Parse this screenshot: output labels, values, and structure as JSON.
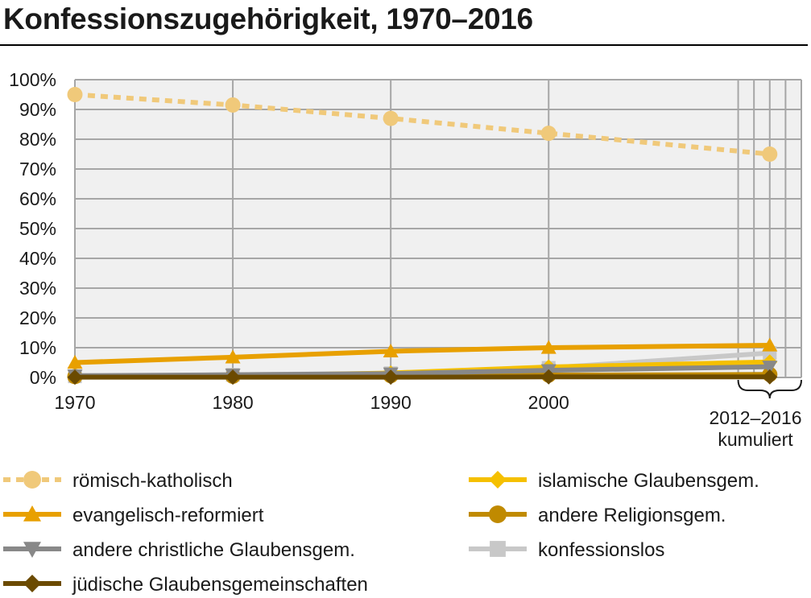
{
  "chart_data": {
    "type": "line",
    "title": "Konfessionszugehörigkeit, 1970–2016",
    "xlabel": "",
    "ylabel": "",
    "x": [
      "1970",
      "1980",
      "1990",
      "2000",
      "2012–2016"
    ],
    "x_values": [
      1970,
      1980,
      1990,
      2000,
      2014
    ],
    "x_tick_labels": [
      "1970",
      "1980",
      "1990",
      "2000"
    ],
    "x_range_label": [
      "2012–2016",
      "kumuliert"
    ],
    "xlim": [
      1970,
      2016
    ],
    "ylim": [
      0,
      100
    ],
    "y_ticks": [
      0,
      10,
      20,
      30,
      40,
      50,
      60,
      70,
      80,
      90,
      100
    ],
    "y_tick_suffix": "%",
    "grid": true,
    "legend_position": "bottom",
    "series": [
      {
        "name": "römisch-katholisch",
        "color": "#f0c97a",
        "dash": "dotted",
        "marker": "circle",
        "values": [
          95,
          91.5,
          87,
          82,
          75
        ]
      },
      {
        "name": "evangelisch-reformiert",
        "color": "#e8a000",
        "dash": "solid",
        "marker": "triangle-up",
        "values": [
          5,
          6.8,
          8.8,
          10,
          10.8
        ]
      },
      {
        "name": "andere christliche Glaubensgem.",
        "color": "#888888",
        "dash": "solid",
        "marker": "triangle-down",
        "values": [
          0.6,
          0.9,
          1.3,
          2.4,
          3.6
        ]
      },
      {
        "name": "jüdische Glaubensgemeinschaften",
        "color": "#6b4a00",
        "dash": "solid",
        "marker": "diamond",
        "values": [
          0.1,
          0.1,
          0.1,
          0.2,
          0.2
        ]
      },
      {
        "name": "islamische Glaubensgem.",
        "color": "#f5c000",
        "dash": "solid",
        "marker": "diamond",
        "values": [
          0.2,
          0.5,
          1.5,
          3.5,
          5.2
        ]
      },
      {
        "name": "andere Religionsgem.",
        "color": "#c08a00",
        "dash": "solid",
        "marker": "circle",
        "values": [
          0.3,
          0.4,
          0.6,
          0.8,
          1.0
        ]
      },
      {
        "name": "konfessionslos",
        "color": "#c8c8c8",
        "dash": "solid",
        "marker": "square",
        "values": [
          0.4,
          0.9,
          1.4,
          3.2,
          8.2
        ]
      }
    ]
  }
}
